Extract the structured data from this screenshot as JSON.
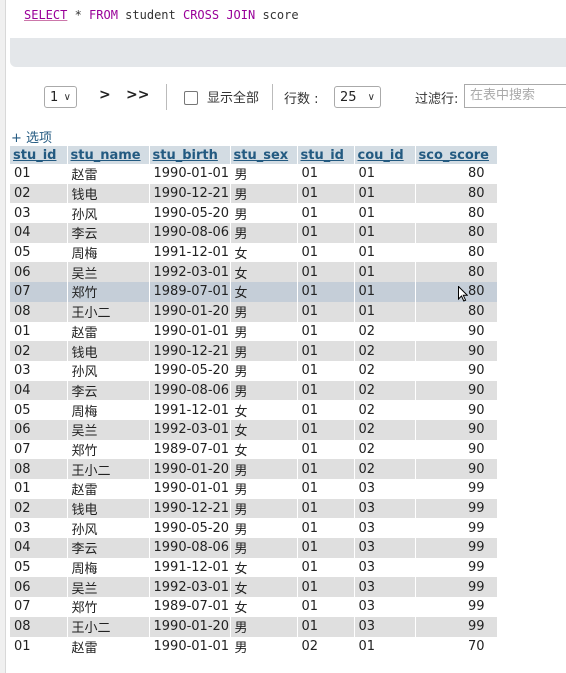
{
  "sql": {
    "select": "SELECT",
    "star": " * ",
    "from": "FROM",
    "table1": " student ",
    "cross_join": "CROSS JOIN",
    "table2": " score"
  },
  "controls": {
    "page": "1",
    "next": ">",
    "last": ">>",
    "show_all": "显示全部",
    "rows_label": "行数 :",
    "rows_value": "25",
    "filter_label": "过滤行:",
    "filter_placeholder": "在表中搜索"
  },
  "options_link": "+ 选项",
  "columns": [
    "stu_id",
    "stu_name",
    "stu_birth",
    "stu_sex",
    "stu_id",
    "cou_id",
    "sco_score"
  ],
  "rows": [
    [
      "01",
      "赵雷",
      "1990-01-01",
      "男",
      "01",
      "01",
      "80"
    ],
    [
      "02",
      "钱电",
      "1990-12-21",
      "男",
      "01",
      "01",
      "80"
    ],
    [
      "03",
      "孙风",
      "1990-05-20",
      "男",
      "01",
      "01",
      "80"
    ],
    [
      "04",
      "李云",
      "1990-08-06",
      "男",
      "01",
      "01",
      "80"
    ],
    [
      "05",
      "周梅",
      "1991-12-01",
      "女",
      "01",
      "01",
      "80"
    ],
    [
      "06",
      "吴兰",
      "1992-03-01",
      "女",
      "01",
      "01",
      "80"
    ],
    [
      "07",
      "郑竹",
      "1989-07-01",
      "女",
      "01",
      "01",
      "80"
    ],
    [
      "08",
      "王小二",
      "1990-01-20",
      "男",
      "01",
      "01",
      "80"
    ],
    [
      "01",
      "赵雷",
      "1990-01-01",
      "男",
      "01",
      "02",
      "90"
    ],
    [
      "02",
      "钱电",
      "1990-12-21",
      "男",
      "01",
      "02",
      "90"
    ],
    [
      "03",
      "孙风",
      "1990-05-20",
      "男",
      "01",
      "02",
      "90"
    ],
    [
      "04",
      "李云",
      "1990-08-06",
      "男",
      "01",
      "02",
      "90"
    ],
    [
      "05",
      "周梅",
      "1991-12-01",
      "女",
      "01",
      "02",
      "90"
    ],
    [
      "06",
      "吴兰",
      "1992-03-01",
      "女",
      "01",
      "02",
      "90"
    ],
    [
      "07",
      "郑竹",
      "1989-07-01",
      "女",
      "01",
      "02",
      "90"
    ],
    [
      "08",
      "王小二",
      "1990-01-20",
      "男",
      "01",
      "02",
      "90"
    ],
    [
      "01",
      "赵雷",
      "1990-01-01",
      "男",
      "01",
      "03",
      "99"
    ],
    [
      "02",
      "钱电",
      "1990-12-21",
      "男",
      "01",
      "03",
      "99"
    ],
    [
      "03",
      "孙风",
      "1990-05-20",
      "男",
      "01",
      "03",
      "99"
    ],
    [
      "04",
      "李云",
      "1990-08-06",
      "男",
      "01",
      "03",
      "99"
    ],
    [
      "05",
      "周梅",
      "1991-12-01",
      "女",
      "01",
      "03",
      "99"
    ],
    [
      "06",
      "吴兰",
      "1992-03-01",
      "女",
      "01",
      "03",
      "99"
    ],
    [
      "07",
      "郑竹",
      "1989-07-01",
      "女",
      "01",
      "03",
      "99"
    ],
    [
      "08",
      "王小二",
      "1990-01-20",
      "男",
      "01",
      "03",
      "99"
    ],
    [
      "01",
      "赵雷",
      "1990-01-01",
      "男",
      "02",
      "01",
      "70"
    ]
  ],
  "hover_row": 6
}
